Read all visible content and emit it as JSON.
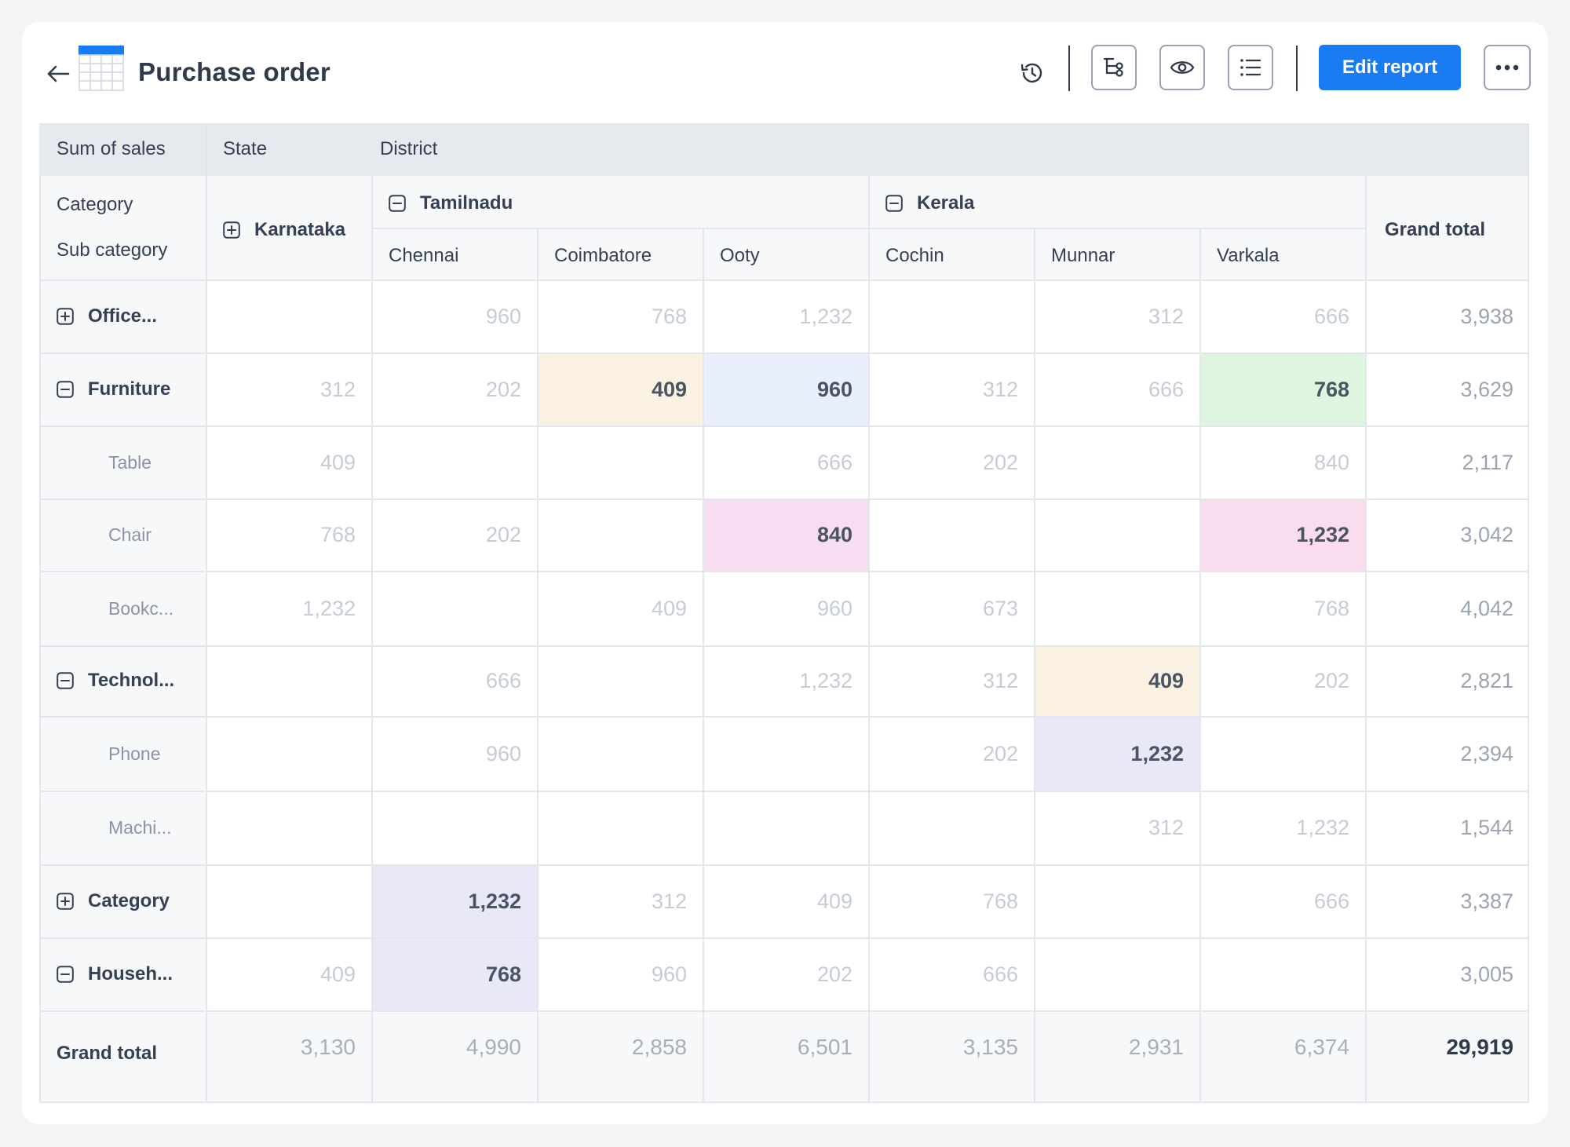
{
  "header": {
    "title": "Purchase order",
    "edit_label": "Edit report",
    "icons": {
      "back": "arrow-left-icon",
      "app": "table-icon",
      "history": "history-icon",
      "group": "hierarchy-icon",
      "view": "eye-icon",
      "list": "list-icon",
      "more": "more-horizontal-icon"
    },
    "accent_color": "#1a7cf3"
  },
  "pivot": {
    "corner": {
      "measure": "Sum of sales",
      "col_field_1": "State",
      "col_field_2": "District",
      "row_field_1": "Category",
      "row_field_2": "Sub category"
    },
    "states": [
      {
        "name": "Karnataka",
        "toggle": "expand"
      },
      {
        "name": "Tamilnadu",
        "toggle": "collapse"
      },
      {
        "name": "Kerala",
        "toggle": "collapse"
      }
    ],
    "districts": [
      "Chennai",
      "Coimbatore",
      "Ooty",
      "Cochin",
      "Munnar",
      "Varkala"
    ],
    "grand_total_label": "Grand total",
    "rows": [
      {
        "label": "Office...",
        "level": 0,
        "toggle": "expand",
        "values": [
          "",
          "960",
          "768",
          "1,232",
          "",
          "312",
          "666"
        ],
        "total": "3,938"
      },
      {
        "label": "Furniture",
        "level": 0,
        "toggle": "collapse",
        "values": [
          "312",
          "202",
          "409",
          "960",
          "312",
          "666",
          "768"
        ],
        "total": "3,629"
      },
      {
        "label": "Table",
        "level": 1,
        "values": [
          "409",
          "",
          "",
          "666",
          "202",
          "",
          "840"
        ],
        "total": "2,117"
      },
      {
        "label": "Chair",
        "level": 1,
        "values": [
          "768",
          "202",
          "",
          "840",
          "",
          "",
          "1,232"
        ],
        "total": "3,042"
      },
      {
        "label": "Bookc...",
        "level": 1,
        "values": [
          "1,232",
          "",
          "409",
          "960",
          "673",
          "",
          "768"
        ],
        "total": "4,042"
      },
      {
        "label": "Technol...",
        "level": 0,
        "toggle": "collapse",
        "values": [
          "",
          "666",
          "",
          "1,232",
          "312",
          "409",
          "202"
        ],
        "total": "2,821"
      },
      {
        "label": "Phone",
        "level": 1,
        "values": [
          "",
          "960",
          "",
          "",
          "202",
          "1,232",
          ""
        ],
        "total": "2,394"
      },
      {
        "label": "Machi...",
        "level": 1,
        "values": [
          "",
          "",
          "",
          "",
          "",
          "312",
          "1,232"
        ],
        "total": "1,544"
      },
      {
        "label": "Category",
        "level": 0,
        "toggle": "expand",
        "values": [
          "",
          "1,232",
          "312",
          "409",
          "768",
          "",
          "666"
        ],
        "total": "3,387"
      },
      {
        "label": "Househ...",
        "level": 0,
        "toggle": "collapse",
        "values": [
          "409",
          "768",
          "960",
          "202",
          "666",
          "",
          ""
        ],
        "total": "3,005"
      }
    ],
    "grand_total_row": {
      "label": "Grand total",
      "values": [
        "3,130",
        "4,990",
        "2,858",
        "6,501",
        "3,135",
        "2,931",
        "6,374"
      ],
      "total": "29,919"
    },
    "highlights": [
      {
        "row": 1,
        "col": 2,
        "color": "#fbf1e3"
      },
      {
        "row": 1,
        "col": 3,
        "color": "#e9effd"
      },
      {
        "row": 1,
        "col": 6,
        "color": "#def5e0"
      },
      {
        "row": 3,
        "col": 3,
        "color": "#f6ddf2"
      },
      {
        "row": 3,
        "col": 6,
        "color": "#f9dcee"
      },
      {
        "row": 5,
        "col": 5,
        "color": "#fbf1e3"
      },
      {
        "row": 6,
        "col": 5,
        "color": "#e9e8f8"
      },
      {
        "row": 8,
        "col": 1,
        "color": "#e9e8f8"
      },
      {
        "row": 9,
        "col": 1,
        "color": "#e9e8f8"
      }
    ]
  }
}
